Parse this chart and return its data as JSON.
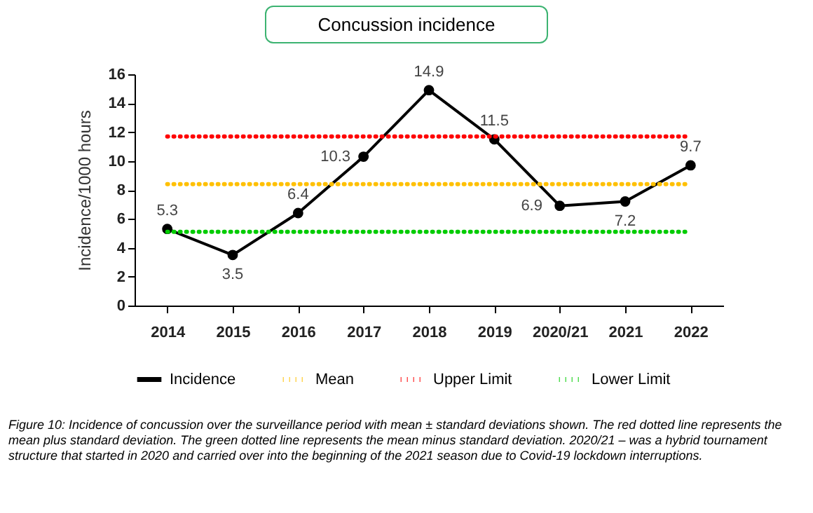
{
  "chart_data": {
    "type": "line",
    "title": "Concussion incidence",
    "ylabel": "Incidence/1000 hours",
    "categories": [
      "2014",
      "2015",
      "2016",
      "2017",
      "2018",
      "2019",
      "2020/21",
      "2021",
      "2022"
    ],
    "series": [
      {
        "name": "Incidence",
        "color": "#000000",
        "marker": "circle",
        "line_style": "solid",
        "values": [
          5.3,
          3.5,
          6.4,
          10.3,
          14.9,
          11.5,
          6.9,
          7.2,
          9.7
        ],
        "value_labels": [
          "5.3",
          "3.5",
          "6.4",
          "10.3",
          "14.9",
          "11.5",
          "6.9",
          "7.2",
          "9.7"
        ]
      },
      {
        "name": "Mean",
        "color": "#ffc000",
        "marker": "none",
        "line_style": "dotted",
        "values": [
          8.4,
          8.4,
          8.4,
          8.4,
          8.4,
          8.4,
          8.4,
          8.4,
          8.4
        ]
      },
      {
        "name": "Upper Limit",
        "color": "#ff0000",
        "marker": "none",
        "line_style": "dotted",
        "values": [
          11.7,
          11.7,
          11.7,
          11.7,
          11.7,
          11.7,
          11.7,
          11.7,
          11.7
        ]
      },
      {
        "name": "Lower Limit",
        "color": "#00cc00",
        "marker": "none",
        "line_style": "dotted",
        "values": [
          5.1,
          5.1,
          5.1,
          5.1,
          5.1,
          5.1,
          5.1,
          5.1,
          5.1
        ]
      }
    ],
    "ylim": [
      0,
      16
    ],
    "yticks": [
      0,
      2,
      4,
      6,
      8,
      10,
      12,
      14,
      16
    ],
    "grid": false,
    "legend": "bottom",
    "annotations": [
      "Figure 10: Incidence of concussion over the surveillance period with mean ± standard deviations shown.  The red dotted line represents the mean plus standard deviation. The green dotted line represents the mean minus standard deviation. 2020/21 – was a hybrid tournament structure that started in 2020 and carried over into the beginning of the 2021 season due to Covid-19 lockdown interruptions."
    ]
  }
}
